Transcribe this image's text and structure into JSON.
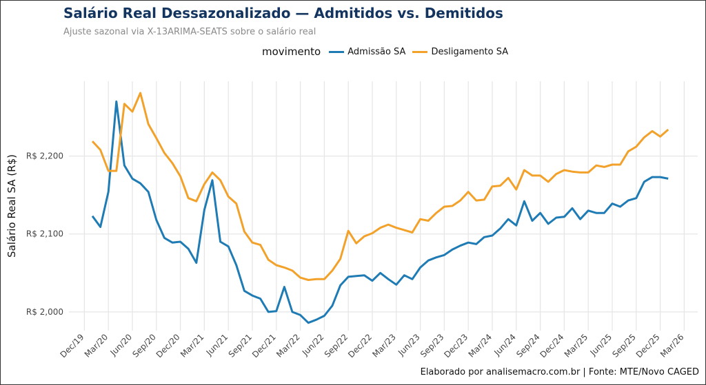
{
  "title": "Salário Real Dessazonalizado — Admitidos vs. Demitidos",
  "subtitle": "Ajuste sazonal via X-13ARIMA-SEATS sobre o salário real",
  "caption": "Elaborado por analisemacro.com.br | Fonte: MTE/Novo CAGED",
  "chart_data": {
    "type": "line",
    "title": "Salário Real Dessazonalizado — Admitidos vs. Demitidos",
    "subtitle": "Ajuste sazonal via X-13ARIMA-SEATS sobre o salário real",
    "ylabel": "Salário Real SA (R$)",
    "xlabel": "",
    "legend_title": "movimento",
    "legend_position": "top",
    "grid": true,
    "x_start": "2020-01",
    "x_frequency": "monthly",
    "xlim": [
      "2019-12",
      "2026-04"
    ],
    "ylim": [
      1976,
      2296
    ],
    "x_ticks": [
      "Dec/19",
      "Mar/20",
      "Jun/20",
      "Sep/20",
      "Dec/20",
      "Mar/21",
      "Jun/21",
      "Sep/21",
      "Dec/21",
      "Mar/22",
      "Jun/22",
      "Sep/22",
      "Dec/22",
      "Mar/23",
      "Jun/23",
      "Sep/23",
      "Dec/23",
      "Mar/24",
      "Jun/24",
      "Sep/24",
      "Dec/24",
      "Mar/25",
      "Jun/25",
      "Sep/25",
      "Dec/25",
      "Mar/26"
    ],
    "y_ticks": [
      {
        "value": 2000,
        "label": "R$ 2,000"
      },
      {
        "value": 2100,
        "label": "R$ 2,100"
      },
      {
        "value": 2200,
        "label": "R$ 2,200"
      }
    ],
    "series": [
      {
        "name": "Admissão SA",
        "color": "#1f7bb4",
        "values": [
          2123,
          2109,
          2154,
          2270,
          2188,
          2171,
          2165,
          2154,
          2118,
          2095,
          2089,
          2090,
          2081,
          2063,
          2131,
          2169,
          2090,
          2084,
          2060,
          2027,
          2021,
          2017,
          2000,
          2001,
          2032,
          2000,
          1996,
          1986,
          1990,
          1995,
          2008,
          2034,
          2045,
          2046,
          2047,
          2040,
          2050,
          2042,
          2035,
          2047,
          2042,
          2057,
          2066,
          2070,
          2073,
          2080,
          2085,
          2089,
          2087,
          2096,
          2098,
          2107,
          2119,
          2111,
          2142,
          2117,
          2127,
          2113,
          2121,
          2122,
          2133,
          2119,
          2130,
          2127,
          2127,
          2139,
          2135,
          2143,
          2146,
          2167,
          2173,
          2173,
          2171
        ]
      },
      {
        "name": "Desligamento SA",
        "color": "#f2a12a",
        "values": [
          2219,
          2208,
          2181,
          2181,
          2267,
          2257,
          2281,
          2241,
          2223,
          2204,
          2191,
          2174,
          2146,
          2142,
          2164,
          2179,
          2169,
          2148,
          2139,
          2103,
          2089,
          2086,
          2067,
          2060,
          2057,
          2053,
          2044,
          2041,
          2042,
          2042,
          2053,
          2068,
          2104,
          2088,
          2097,
          2101,
          2108,
          2112,
          2108,
          2105,
          2102,
          2119,
          2117,
          2127,
          2135,
          2136,
          2143,
          2154,
          2143,
          2144,
          2161,
          2162,
          2172,
          2157,
          2182,
          2175,
          2175,
          2167,
          2177,
          2182,
          2180,
          2179,
          2179,
          2188,
          2186,
          2189,
          2189,
          2206,
          2212,
          2224,
          2232,
          2225,
          2234
        ]
      }
    ]
  }
}
